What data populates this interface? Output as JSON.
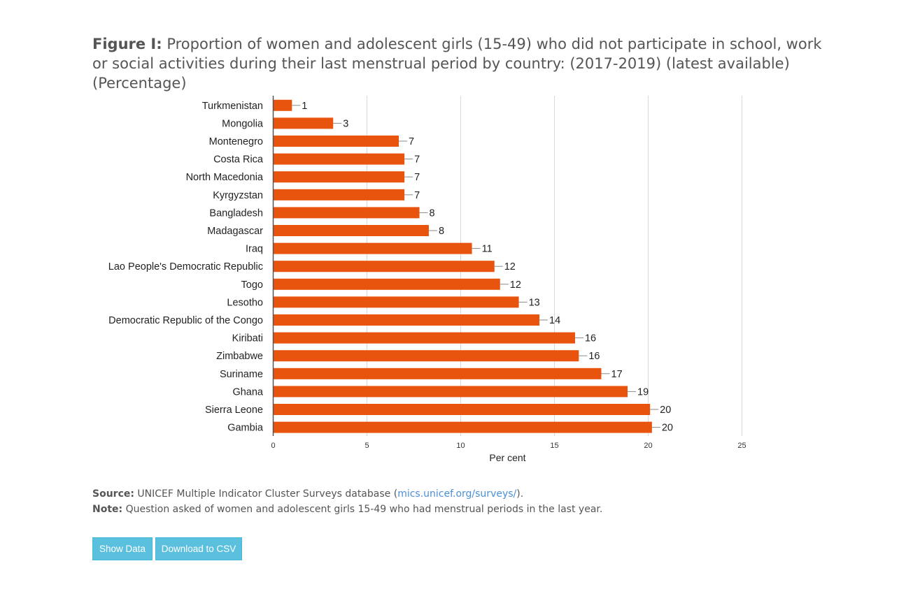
{
  "title": {
    "lead": "Figure I:",
    "text": "Proportion of women and adolescent girls (15-49) who did not participate in school, work or social activities during their last menstrual period by country: (2017-2019) (latest available) (Percentage)"
  },
  "chart_data": {
    "type": "bar",
    "orientation": "horizontal",
    "categories": [
      "Turkmenistan",
      "Mongolia",
      "Montenegro",
      "Costa Rica",
      "North Macedonia",
      "Kyrgyzstan",
      "Bangladesh",
      "Madagascar",
      "Iraq",
      "Lao People's Democratic Republic",
      "Togo",
      "Lesotho",
      "Democratic Republic of the Congo",
      "Kiribati",
      "Zimbabwe",
      "Suriname",
      "Ghana",
      "Sierra Leone",
      "Gambia"
    ],
    "values": [
      1.0,
      3.2,
      6.7,
      7.0,
      7.0,
      7.0,
      7.8,
      8.3,
      10.6,
      11.8,
      12.1,
      13.1,
      14.2,
      16.1,
      16.3,
      17.5,
      18.9,
      20.1,
      20.2
    ],
    "data_labels": [
      "1",
      "3",
      "7",
      "7",
      "7",
      "7",
      "8",
      "8",
      "11",
      "12",
      "12",
      "13",
      "14",
      "16",
      "16",
      "17",
      "19",
      "20",
      "20"
    ],
    "xlabel": "Per cent",
    "ylabel": "",
    "xlim": [
      0,
      25
    ],
    "xticks": [
      0,
      5,
      10,
      15,
      20,
      25
    ],
    "grid": "vertical",
    "bar_color": "#e8540d"
  },
  "source": {
    "label": "Source:",
    "text_before": "UNICEF Multiple Indicator Cluster Surveys database (",
    "link": "mics.unicef.org/surveys/",
    "text_after": ")."
  },
  "note": {
    "label": "Note:",
    "text": "Question asked of women and adolescent girls 15-49 who had menstrual periods in the last year."
  },
  "buttons": {
    "show_data": "Show Data",
    "download_csv": "Download to CSV"
  },
  "colors": {
    "button_bg": "#5bc0de",
    "link": "#4a90d9",
    "text": "#555555"
  }
}
